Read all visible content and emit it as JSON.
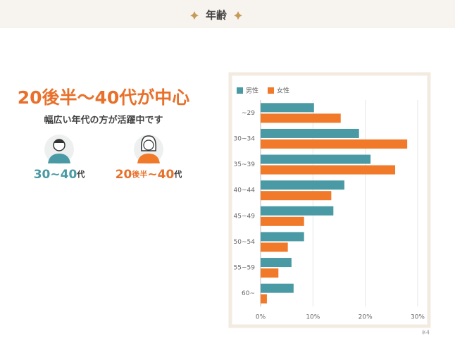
{
  "header": {
    "title": "年齢"
  },
  "intro": {
    "headline": "20後半〜40代が中心",
    "subtitle": "幅広い年代の方が活躍中です",
    "personas": [
      {
        "parts": [
          "30~40",
          "代"
        ]
      },
      {
        "parts": [
          "20",
          "後半",
          "~40",
          "代"
        ]
      }
    ]
  },
  "footnote": "※4",
  "chart_data": {
    "type": "hbar",
    "categories": [
      "~29",
      "30~34",
      "35~39",
      "40~44",
      "45~49",
      "50~54",
      "55~59",
      "60~"
    ],
    "series": [
      {
        "name": "男性",
        "color": "#4a9aa5",
        "values": [
          10.2,
          18.8,
          21.0,
          16.0,
          13.9,
          8.3,
          5.9,
          6.3
        ]
      },
      {
        "name": "女性",
        "color": "#f07a2a",
        "values": [
          15.3,
          28.0,
          25.7,
          13.5,
          8.3,
          5.2,
          3.4,
          1.2
        ]
      }
    ],
    "xlim": [
      0,
      30
    ],
    "xticks": [
      {
        "value": 0,
        "label": "0%"
      },
      {
        "value": 10,
        "label": "10%"
      },
      {
        "value": 20,
        "label": "20%"
      },
      {
        "value": 30,
        "label": "30%"
      }
    ],
    "grid": true,
    "legend": "top-left"
  }
}
